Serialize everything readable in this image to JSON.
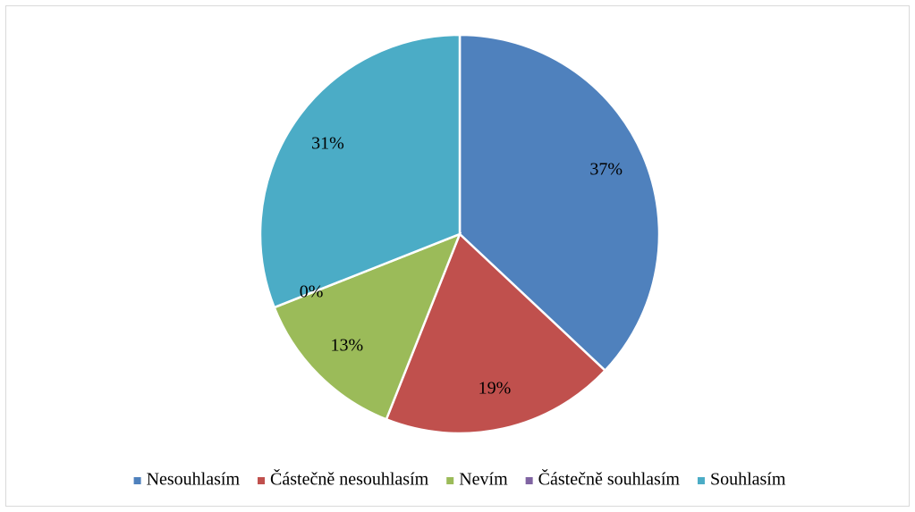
{
  "chart_data": {
    "type": "pie",
    "categories": [
      "Nesouhlasím",
      "Částečně nesouhlasím",
      "Nevím",
      "Částečně souhlasím",
      "Souhlasím"
    ],
    "values": [
      37,
      19,
      13,
      0,
      31
    ],
    "value_labels": [
      "37%",
      "19%",
      "13%",
      "0%",
      "31%"
    ],
    "colors": [
      "#4f81bd",
      "#c0504d",
      "#9bbb59",
      "#8064a2",
      "#4bacc6"
    ],
    "legend": "bottom"
  }
}
